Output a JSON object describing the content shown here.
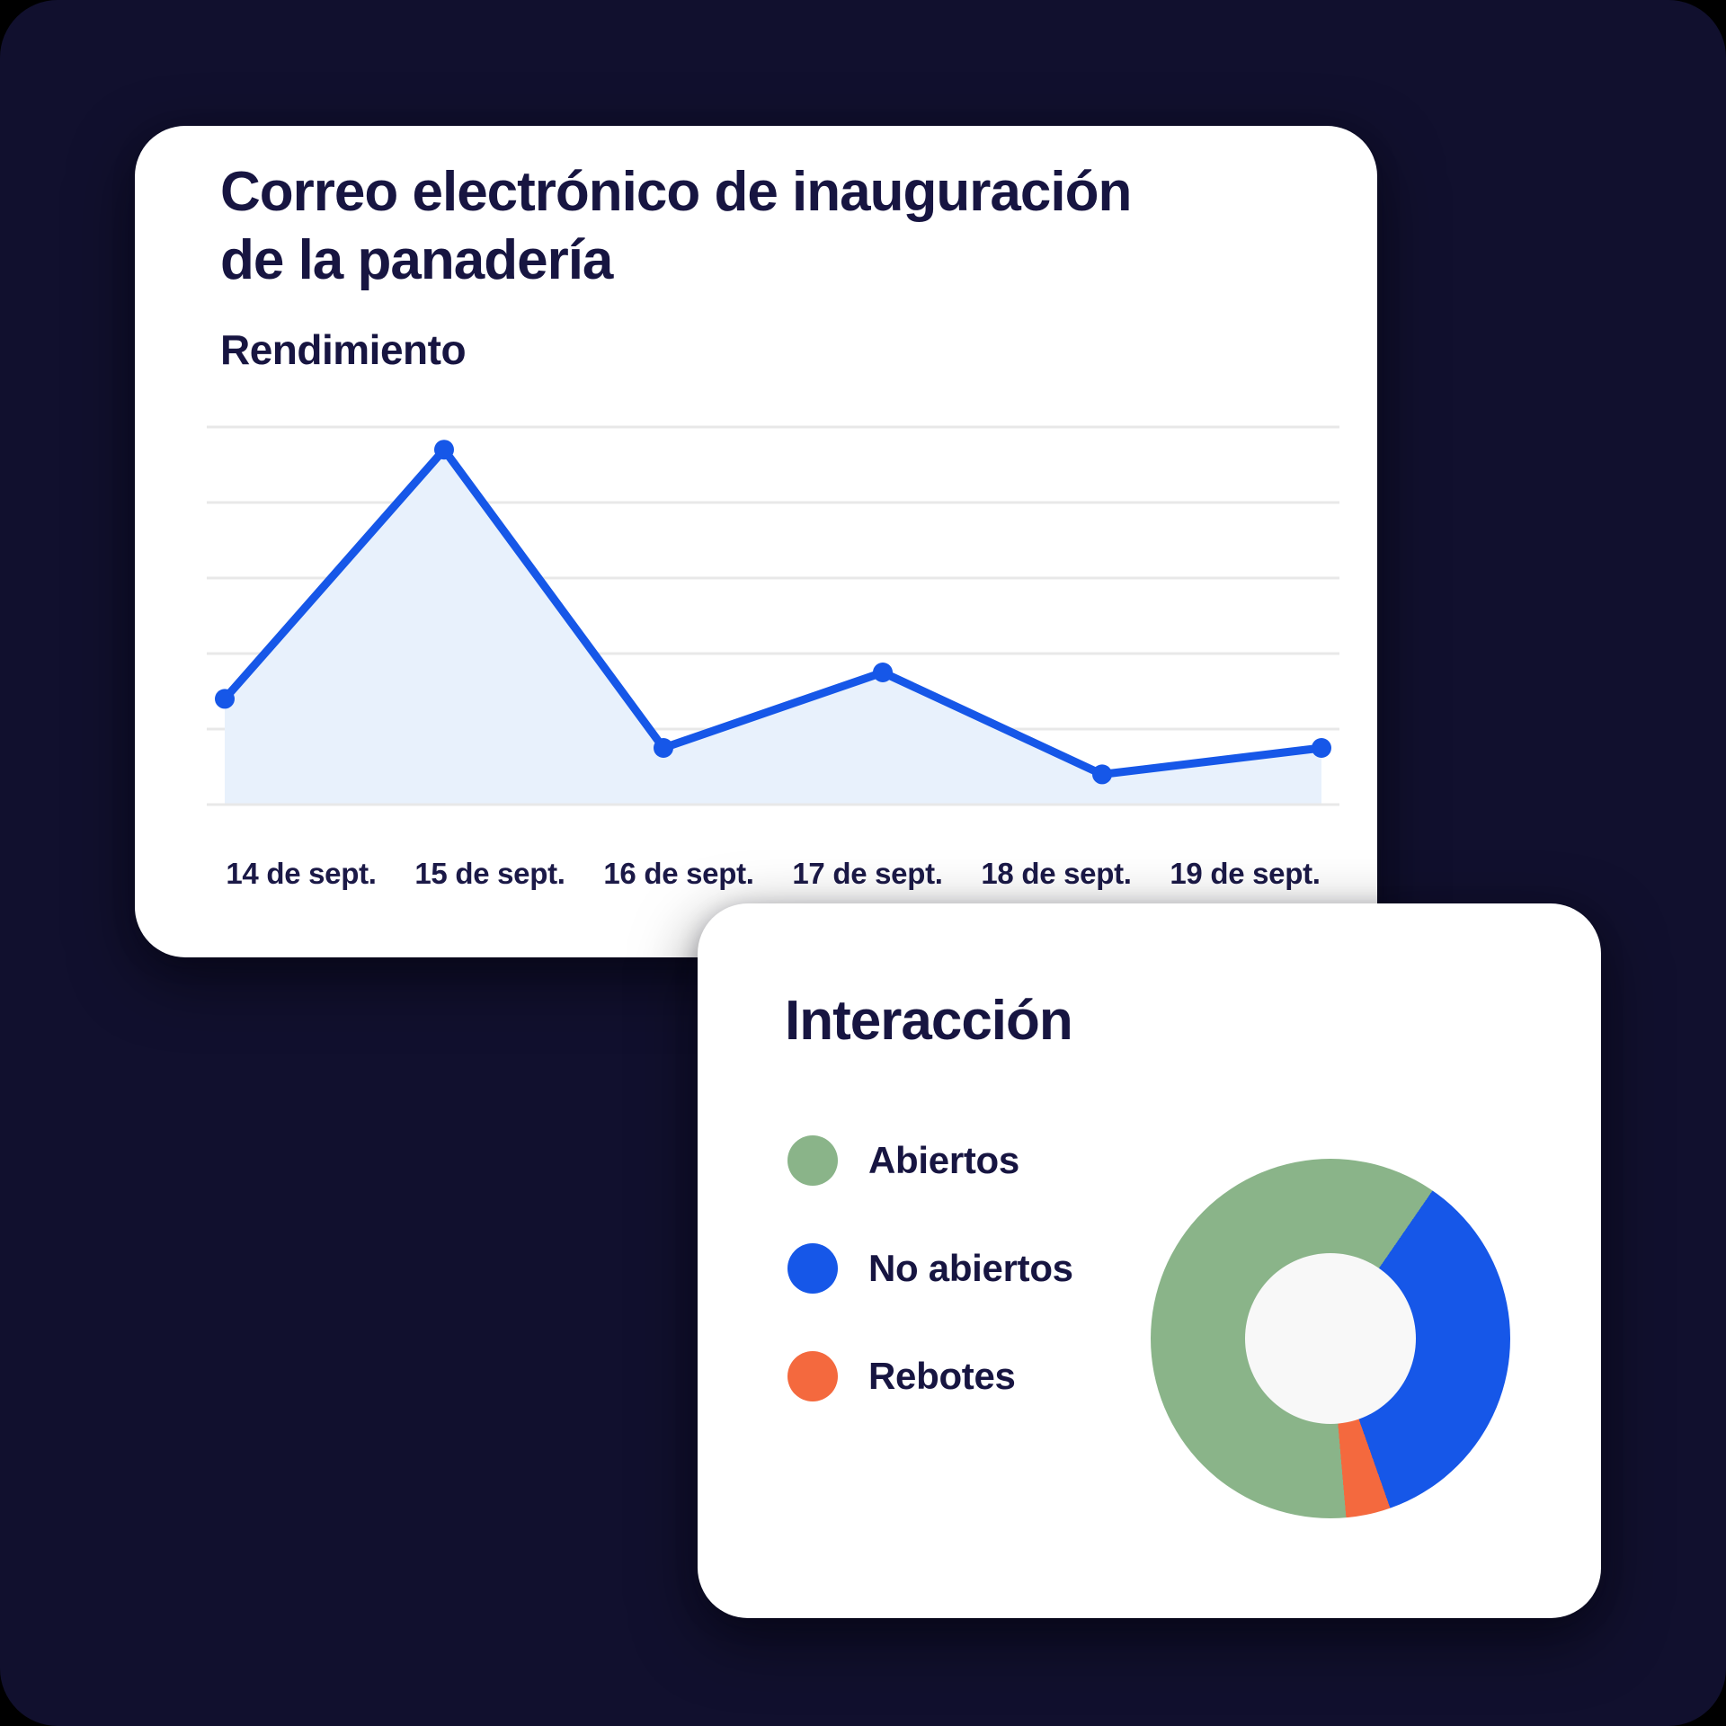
{
  "colors": {
    "background": "#11102e",
    "card": "#ffffff",
    "heading_text": "#171541",
    "axis_label_text": "#1b1947",
    "line_blue": "#1657e8",
    "area_fill": "#e8f1fc",
    "gridline": "#e8e8e8",
    "legend_green": "#8ab489",
    "legend_blue": "#1657e8",
    "legend_orange": "#f4693e",
    "donut_hole": "#f8f8f8"
  },
  "performance_card": {
    "title_lines": [
      "Correo electrónico de inauguración",
      "de la panadería"
    ],
    "section_label": "Rendimiento"
  },
  "interaction_card": {
    "title": "Interacción"
  },
  "chart_data": [
    {
      "type": "area",
      "title": "Rendimiento",
      "categories": [
        "14 de sept.",
        "15 de sept.",
        "16 de sept.",
        "17 de sept.",
        "18 de sept.",
        "19 de sept."
      ],
      "values": [
        140,
        470,
        75,
        175,
        40,
        75
      ],
      "xlabel": "",
      "ylabel": "",
      "ylim": [
        0,
        500
      ],
      "gridline_count": 6,
      "grid": true,
      "legend_position": "none",
      "line_color": "#1657e8",
      "fill_color": "#e8f1fc",
      "point_color": "#1657e8"
    },
    {
      "type": "pie",
      "subtype": "donut",
      "title": "Interacción",
      "labels": [
        "Abiertos",
        "No abiertos",
        "Rebotes"
      ],
      "values": [
        61,
        35,
        4
      ],
      "unit": "percent",
      "colors": [
        "#8ab489",
        "#1657e8",
        "#f4693e"
      ],
      "start_angle_deg": 175,
      "hole_color": "#f8f8f8",
      "legend_position": "left"
    }
  ]
}
